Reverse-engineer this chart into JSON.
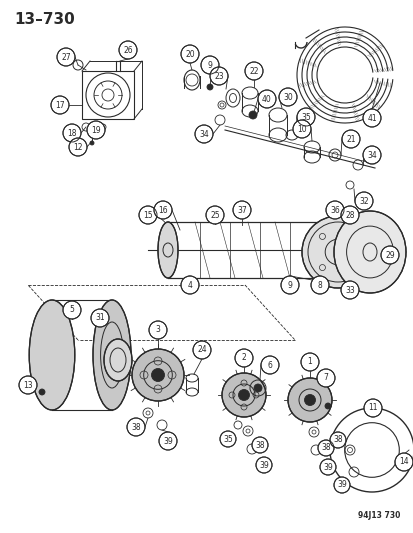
{
  "title": "13–730",
  "subtitle_code": "94J13 730",
  "bg_color": "#ffffff",
  "line_color": "#2a2a2a",
  "figsize": [
    4.14,
    5.33
  ],
  "dpi": 100
}
